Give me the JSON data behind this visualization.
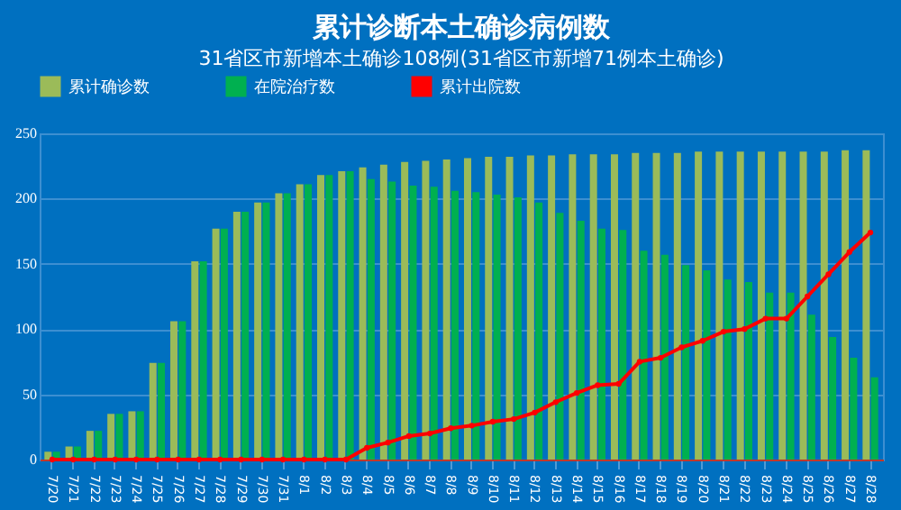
{
  "chart_data": {
    "type": "bar",
    "title": "累计诊断本土确诊病例数",
    "subtitle": "31省区市新增本土确诊108例(31省区市新增71例本土确诊)",
    "categories": [
      "7/20",
      "7/21",
      "7/22",
      "7/23",
      "7/24",
      "7/25",
      "7/26",
      "7/27",
      "7/28",
      "7/29",
      "7/30",
      "7/31",
      "8/1",
      "8/2",
      "8/3",
      "8/4",
      "8/5",
      "8/6",
      "8/7",
      "8/8",
      "8/9",
      "8/10",
      "8/11",
      "8/12",
      "8/13",
      "8/14",
      "8/15",
      "8/16",
      "8/17",
      "8/18",
      "8/19",
      "8/20",
      "8/21",
      "8/22",
      "8/23",
      "8/24",
      "8/25",
      "8/26",
      "8/27",
      "8/28"
    ],
    "series": [
      {
        "name": "累计确诊数",
        "color": "#9bbb59",
        "values": [
          6,
          10,
          22,
          35,
          37,
          74,
          106,
          152,
          177,
          190,
          197,
          204,
          211,
          218,
          221,
          224,
          226,
          228,
          229,
          230,
          231,
          232,
          232,
          233,
          233,
          234,
          234,
          234,
          235,
          235,
          235,
          236,
          236,
          236,
          236,
          236,
          236,
          236,
          237,
          237
        ]
      },
      {
        "name": "在院治疗数",
        "color": "#00b050",
        "values": [
          6,
          10,
          22,
          35,
          37,
          74,
          106,
          152,
          177,
          190,
          197,
          204,
          211,
          218,
          221,
          215,
          213,
          210,
          209,
          206,
          205,
          203,
          201,
          197,
          189,
          183,
          177,
          176,
          160,
          157,
          149,
          145,
          138,
          136,
          128,
          128,
          111,
          94,
          78,
          63
        ]
      },
      {
        "name": "累计出院数",
        "type": "line",
        "color": "#ff0000",
        "values": [
          0,
          0,
          0,
          0,
          0,
          0,
          0,
          0,
          0,
          0,
          0,
          0,
          0,
          0,
          0,
          9,
          13,
          18,
          20,
          24,
          26,
          29,
          31,
          36,
          44,
          51,
          57,
          58,
          75,
          78,
          86,
          91,
          98,
          100,
          108,
          108,
          125,
          142,
          159,
          174
        ]
      }
    ],
    "ylim": [
      0,
      250
    ],
    "yticks": [
      0,
      50,
      100,
      150,
      200,
      250
    ],
    "grid": "y",
    "legend": "top",
    "marker": "circle",
    "line_style": "solid"
  }
}
